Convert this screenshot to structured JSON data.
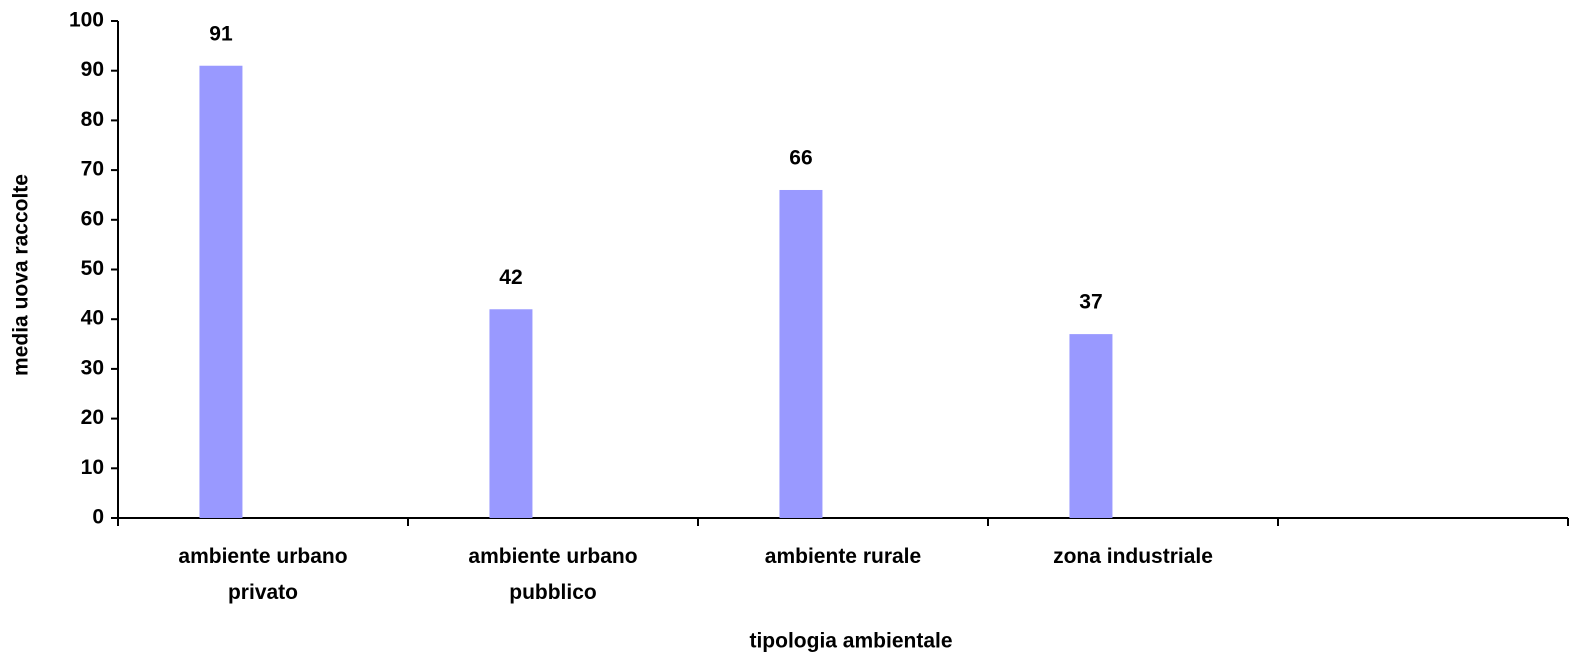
{
  "chart_data": {
    "type": "bar",
    "categories": [
      "ambiente urbano privato",
      "ambiente urbano pubblico",
      "ambiente rurale",
      "zona industriale",
      null
    ],
    "values": [
      91,
      42,
      66,
      37,
      null
    ],
    "color": "#9999ff",
    "xlabel": "tipologia ambientale",
    "ylabel": "media  uova raccolte",
    "ylim": [
      0,
      100
    ],
    "yticks": [
      0,
      10,
      20,
      30,
      40,
      50,
      60,
      70,
      80,
      90,
      100
    ],
    "grid": false
  }
}
